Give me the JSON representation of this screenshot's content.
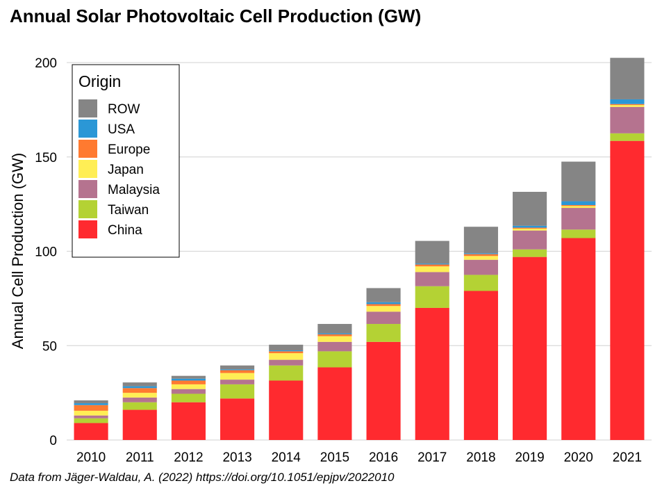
{
  "chart_data": {
    "type": "bar",
    "stacked": true,
    "title": "Annual Solar Photovoltaic Cell Production (GW)",
    "ylabel": "Annual Cell Production (GW)",
    "xlabel": "",
    "ylim": [
      0,
      200
    ],
    "yticks": [
      "0",
      "50",
      "100",
      "150",
      "200"
    ],
    "grid": true,
    "legend": {
      "title": "Origin",
      "placement": "top-left"
    },
    "categories": [
      "2010",
      "2011",
      "2012",
      "2013",
      "2014",
      "2015",
      "2016",
      "2017",
      "2018",
      "2019",
      "2020",
      "2021"
    ],
    "series": [
      {
        "name": "China",
        "color": "#ff2a2f",
        "values": [
          9,
          16,
          20,
          22,
          31.5,
          38.5,
          52,
          70,
          79,
          97,
          107,
          158.5
        ]
      },
      {
        "name": "Taiwan",
        "color": "#b4d234",
        "values": [
          2.5,
          4,
          4.5,
          7.5,
          8,
          8.5,
          9.5,
          11.5,
          8.5,
          4,
          4.5,
          4
        ]
      },
      {
        "name": "Malaysia",
        "color": "#b5738f",
        "values": [
          1.5,
          2.5,
          2.5,
          2.5,
          3,
          5,
          6.5,
          7.5,
          8,
          10,
          11.5,
          14
        ]
      },
      {
        "name": "Japan",
        "color": "#ffee55",
        "values": [
          2.5,
          2.5,
          2.5,
          3.5,
          3.5,
          3,
          3,
          3,
          2,
          1,
          1,
          1
        ]
      },
      {
        "name": "Europe",
        "color": "#ff7a30",
        "values": [
          3,
          2.5,
          2,
          1.5,
          1,
          1,
          1,
          1,
          1,
          0.5,
          0.5,
          0.5
        ]
      },
      {
        "name": "USA",
        "color": "#2b97d6",
        "values": [
          1,
          1,
          1,
          0.5,
          0.5,
          0.5,
          1,
          0.5,
          0.5,
          1,
          2,
          2.5
        ]
      },
      {
        "name": "ROW",
        "color": "#858585",
        "values": [
          1.5,
          2,
          1.5,
          2,
          3,
          5,
          7.5,
          12,
          14,
          18,
          21,
          22
        ]
      }
    ],
    "legend_order": [
      "ROW",
      "USA",
      "Europe",
      "Japan",
      "Malaysia",
      "Taiwan",
      "China"
    ]
  },
  "caption": "Data from Jäger-Waldau, A. (2022) https://doi.org/10.1051/epjpv/2022010"
}
